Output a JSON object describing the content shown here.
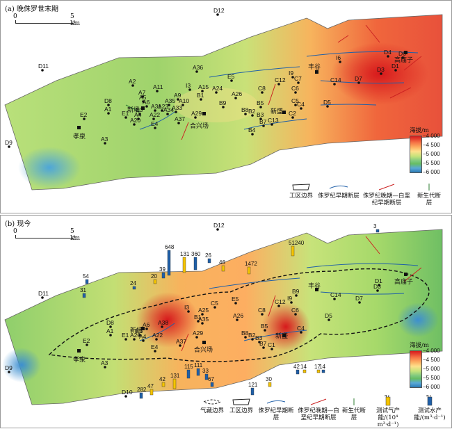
{
  "panel_a": {
    "title": "(a) 晚侏罗世末期",
    "scale_start": "0",
    "scale_end": "5 km",
    "wells": [
      {
        "name": "D12"
      },
      {
        "name": "D11"
      },
      {
        "name": "D9"
      },
      {
        "name": "D8"
      },
      {
        "name": "E2"
      },
      {
        "name": "A1"
      },
      {
        "name": "A2"
      },
      {
        "name": "A3"
      },
      {
        "name": "A4"
      },
      {
        "name": "A5"
      },
      {
        "name": "A6"
      },
      {
        "name": "A7"
      },
      {
        "name": "A9"
      },
      {
        "name": "A10"
      },
      {
        "name": "A11"
      },
      {
        "name": "A15"
      },
      {
        "name": "A20"
      },
      {
        "name": "A22"
      },
      {
        "name": "A23"
      },
      {
        "name": "A24"
      },
      {
        "name": "A26"
      },
      {
        "name": "A29"
      },
      {
        "name": "A31"
      },
      {
        "name": "A33"
      },
      {
        "name": "A34"
      },
      {
        "name": "A35"
      },
      {
        "name": "A36"
      },
      {
        "name": "A37"
      },
      {
        "name": "B1"
      },
      {
        "name": "B2"
      },
      {
        "name": "B3"
      },
      {
        "name": "B4"
      },
      {
        "name": "B5"
      },
      {
        "name": "B7"
      },
      {
        "name": "B8"
      },
      {
        "name": "B9"
      },
      {
        "name": "C2"
      },
      {
        "name": "C4"
      },
      {
        "name": "C5"
      },
      {
        "name": "C6"
      },
      {
        "name": "C7"
      },
      {
        "name": "C8"
      },
      {
        "name": "C12"
      },
      {
        "name": "C13"
      },
      {
        "name": "C14"
      },
      {
        "name": "D1"
      },
      {
        "name": "D3"
      },
      {
        "name": "D4"
      },
      {
        "name": "D5"
      },
      {
        "name": "D6"
      },
      {
        "name": "D7"
      },
      {
        "name": "E1"
      },
      {
        "name": "E3"
      },
      {
        "name": "E4"
      },
      {
        "name": "E5"
      },
      {
        "name": "I3"
      },
      {
        "name": "I6"
      },
      {
        "name": "I9"
      }
    ],
    "places": [
      "孝泉",
      "新场",
      "合兴场",
      "新盛",
      "丰谷",
      "高庙子"
    ],
    "legend": {
      "boundary": "工区边界",
      "fault_early": "侏罗纪早期断层",
      "fault_late": "侏罗纪晚期—白垩纪早期断层",
      "fault_neo": "新生代断层"
    },
    "colorbar": {
      "title": "海拔/m",
      "ticks": [
        "−4 000",
        "−4 500",
        "−5 000",
        "−5 500",
        "−6 000"
      ]
    }
  },
  "panel_b": {
    "title": "(b) 现今",
    "scale_start": "0",
    "scale_end": "5 km",
    "wells": [
      {
        "name": "D12"
      },
      {
        "name": "D11"
      },
      {
        "name": "D9"
      },
      {
        "name": "D10"
      },
      {
        "name": "D8"
      },
      {
        "name": "E2"
      },
      {
        "name": "A1"
      },
      {
        "name": "A3"
      },
      {
        "name": "A4"
      },
      {
        "name": "A6"
      },
      {
        "name": "A20"
      },
      {
        "name": "A22"
      },
      {
        "name": "A25"
      },
      {
        "name": "A26"
      },
      {
        "name": "A29"
      },
      {
        "name": "A35"
      },
      {
        "name": "A37"
      },
      {
        "name": "A38"
      },
      {
        "name": "B1"
      },
      {
        "name": "B2"
      },
      {
        "name": "B3"
      },
      {
        "name": "B5"
      },
      {
        "name": "B7"
      },
      {
        "name": "B8"
      },
      {
        "name": "B9"
      },
      {
        "name": "C1"
      },
      {
        "name": "C4"
      },
      {
        "name": "C5"
      },
      {
        "name": "C6"
      },
      {
        "name": "C8"
      },
      {
        "name": "C12"
      },
      {
        "name": "C14"
      },
      {
        "name": "D1"
      },
      {
        "name": "D3"
      },
      {
        "name": "D5"
      },
      {
        "name": "D7"
      },
      {
        "name": "E1"
      },
      {
        "name": "E3"
      },
      {
        "name": "E4"
      },
      {
        "name": "E5"
      },
      {
        "name": "I3"
      },
      {
        "name": "I9"
      }
    ],
    "places": [
      "孝泉",
      "新场",
      "合兴场",
      "新盛",
      "丰谷",
      "高庙子"
    ],
    "production_labels": [
      "648",
      "131",
      "360",
      "26",
      "46",
      "1472",
      "51240",
      "3",
      "54",
      "31",
      "24",
      "20",
      "39",
      "115",
      "111",
      "33",
      "67",
      "121",
      "30",
      "42",
      "14",
      "17",
      "14",
      "282",
      "47",
      "42",
      "131"
    ],
    "legend": {
      "gas_boundary": "气藏边界",
      "boundary": "工区边界",
      "fault_early": "侏罗纪早期断层",
      "fault_late": "侏罗纪晚期—白垩纪早期断层",
      "fault_neo": "新生代断层",
      "gas_prod": "测试气产能/(10⁴ m³·d⁻¹)",
      "water_prod": "测试水产能/(m³·d⁻¹)",
      "gas_sample": "47",
      "water_sample": "47"
    },
    "colorbar": {
      "title": "海拔/m",
      "ticks": [
        "−4 000",
        "−4 500",
        "−5 000",
        "−5 500",
        "−6 000"
      ]
    }
  },
  "colors": {
    "high": "#d7191c",
    "mid_high": "#fdae61",
    "mid": "#fee08b",
    "mid_low": "#7fc97f",
    "low": "#2c7bb6",
    "fault_early": "#1f5fa8",
    "fault_late": "#cc2222",
    "fault_neo": "#2e7d32"
  }
}
